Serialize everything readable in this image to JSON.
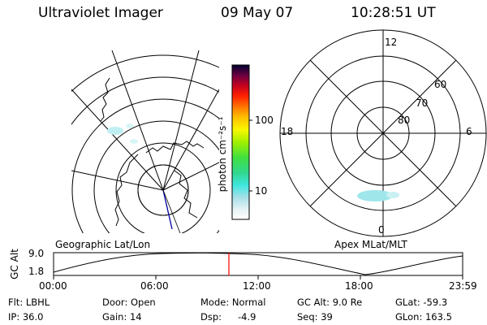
{
  "header": {
    "title": "Ultraviolet Imager",
    "date": "09 May 07",
    "time": "10:28:51 UT"
  },
  "colorbar": {
    "label": "photon cm⁻²s⁻¹",
    "tick_labels": [
      "100",
      "10"
    ]
  },
  "polar_plot": {
    "mlt_labels": [
      "12",
      "18",
      "6",
      "0"
    ],
    "mlat_labels": [
      "60",
      "70",
      "80"
    ]
  },
  "map_titles": {
    "left": "Geographic Lat/Lon",
    "right": "Apex MLat/MLT"
  },
  "altitude_plot": {
    "ylabel": "GC Alt",
    "yticks": [
      "9.0",
      "1.8"
    ],
    "xticks": [
      "00:00",
      "06:00",
      "12:00",
      "18:00",
      "23:59"
    ]
  },
  "info": {
    "flt": "Flt: LBHL",
    "ip": "IP: 36.0",
    "door": "Door: Open",
    "gain": "Gain: 14",
    "mode": "Mode: Normal",
    "dsp_label": "Dsp:",
    "dsp_value": "-4.9",
    "gc_alt": "GC Alt: 9.0 Re",
    "seq": "Seq: 39",
    "glat": "GLat: -59.3",
    "glon": "GLon: 163.5"
  },
  "colors": {
    "marker": "#ff0000",
    "track": "#0000a0"
  }
}
